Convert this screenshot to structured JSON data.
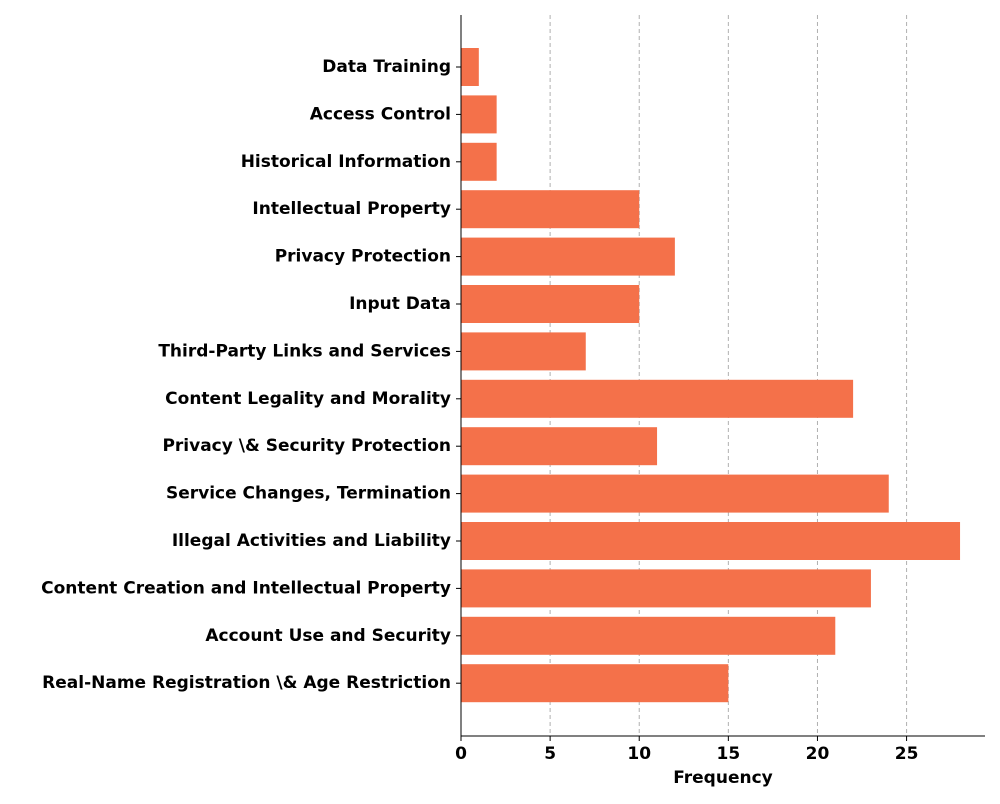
{
  "chart_data": {
    "type": "bar",
    "orientation": "horizontal",
    "title": "",
    "xlabel": "Frequency",
    "ylabel": "",
    "xlim": [
      0,
      29.4
    ],
    "x_ticks": [
      0,
      5,
      10,
      15,
      20,
      25
    ],
    "grid": "vertical dashed",
    "legend": "none",
    "bar_color": "#F4714A",
    "categories": [
      "Data Training",
      "Access Control",
      "Historical Information",
      "Intellectual Property",
      "Privacy Protection",
      "Input Data",
      "Third-Party Links and Services",
      "Content Legality and Morality",
      "Privacy \\& Security Protection",
      "Service Changes, Termination",
      "Illegal Activities and Liability",
      "Content Creation and Intellectual Property",
      "Account Use and Security",
      "Real-Name Registration \\& Age Restriction"
    ],
    "values": [
      1,
      2,
      2,
      10,
      12,
      10,
      7,
      22,
      11,
      24,
      28,
      23,
      21,
      15
    ]
  }
}
